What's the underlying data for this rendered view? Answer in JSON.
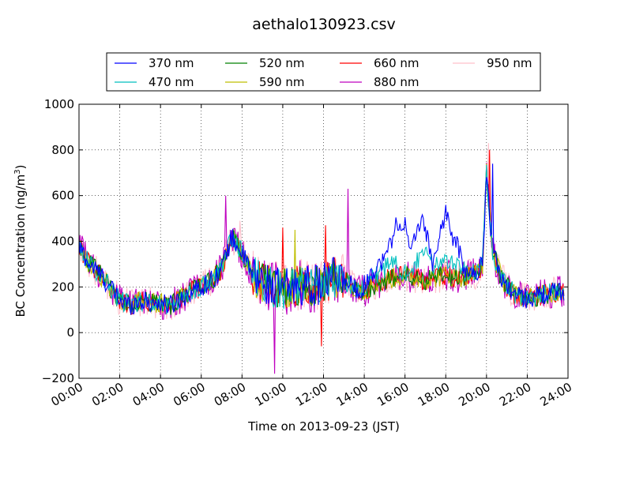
{
  "chart_data": {
    "type": "line",
    "title": "aethalo130923.csv",
    "xlabel": "Time on 2013-09-23 (JST)",
    "ylabel_main": "BC Concentration (ng/m",
    "ylabel_sup": "3",
    "ylabel_end": ")",
    "xlim": [
      0,
      24
    ],
    "ylim": [
      -200,
      1000
    ],
    "grid": true,
    "legend_location": "top-center",
    "x_ticks": [
      0,
      2,
      4,
      6,
      8,
      10,
      12,
      14,
      16,
      18,
      20,
      22,
      24
    ],
    "x_tick_labels": [
      "00:00",
      "02:00",
      "04:00",
      "06:00",
      "08:00",
      "10:00",
      "12:00",
      "14:00",
      "16:00",
      "18:00",
      "20:00",
      "22:00",
      "24:00"
    ],
    "y_ticks": [
      -200,
      0,
      200,
      400,
      600,
      800,
      1000
    ],
    "y_tick_labels": [
      "−200",
      "0",
      "200",
      "400",
      "600",
      "800",
      "1000"
    ],
    "baseline": {
      "x": [
        0,
        0.5,
        1,
        1.5,
        2,
        2.5,
        3,
        3.5,
        4,
        4.5,
        5,
        5.5,
        6,
        6.5,
        7,
        7.5,
        8,
        8.5,
        9,
        9.5,
        10,
        10.5,
        11,
        11.5,
        12,
        12.5,
        13,
        13.5,
        14,
        14.5,
        15,
        15.5,
        16,
        16.5,
        17,
        17.5,
        18,
        18.5,
        19,
        19.5,
        19.8,
        20,
        20.3,
        20.7,
        21,
        21.5,
        22,
        22.5,
        23,
        23.5,
        24
      ],
      "y": [
        380,
        300,
        260,
        200,
        140,
        120,
        140,
        130,
        130,
        120,
        150,
        180,
        200,
        230,
        280,
        420,
        350,
        250,
        220,
        200,
        190,
        200,
        210,
        200,
        220,
        240,
        230,
        200,
        180,
        210,
        230,
        240,
        250,
        240,
        230,
        240,
        250,
        240,
        250,
        260,
        300,
        700,
        350,
        250,
        200,
        160,
        150,
        160,
        170,
        180,
        180
      ]
    },
    "series": [
      {
        "name": "370 nm",
        "color": "#0000ff",
        "x": [
          14,
          14.5,
          15,
          15.3,
          15.6,
          16,
          16.3,
          16.6,
          17,
          17.3,
          17.6,
          18,
          18.3,
          18.6,
          19
        ],
        "y": [
          210,
          280,
          320,
          400,
          480,
          470,
          330,
          480,
          470,
          300,
          380,
          540,
          420,
          370,
          260
        ]
      },
      {
        "name": "470 nm",
        "color": "#00bfbf",
        "x": [
          14,
          14.5,
          15,
          15.5,
          16,
          16.5,
          17,
          17.5,
          18,
          18.5,
          19
        ],
        "y": [
          210,
          250,
          280,
          300,
          260,
          300,
          340,
          290,
          320,
          320,
          260
        ]
      },
      {
        "name": "520 nm",
        "color": "#008000",
        "x": [],
        "y": []
      },
      {
        "name": "590 nm",
        "color": "#bfbf00",
        "x": [],
        "y": []
      },
      {
        "name": "660 nm",
        "color": "#ff0000",
        "x": [],
        "y": []
      },
      {
        "name": "880 nm",
        "color": "#bf00bf",
        "x": [],
        "y": []
      },
      {
        "name": "950 nm",
        "color": "#ffc0cb",
        "x": [],
        "y": []
      }
    ],
    "spikes": [
      {
        "series": 5,
        "x": 7.2,
        "y": 600
      },
      {
        "series": 6,
        "x": 7.9,
        "y": 490
      },
      {
        "series": 5,
        "x": 9.6,
        "y": -180
      },
      {
        "series": 4,
        "x": 10.0,
        "y": 460
      },
      {
        "series": 3,
        "x": 10.6,
        "y": 450
      },
      {
        "series": 4,
        "x": 11.9,
        "y": -60
      },
      {
        "series": 4,
        "x": 12.1,
        "y": 470
      },
      {
        "series": 5,
        "x": 13.2,
        "y": 630
      },
      {
        "series": 6,
        "x": 20.1,
        "y": 830
      },
      {
        "series": 4,
        "x": 20.15,
        "y": 800
      },
      {
        "series": 0,
        "x": 20.3,
        "y": 740
      }
    ]
  }
}
